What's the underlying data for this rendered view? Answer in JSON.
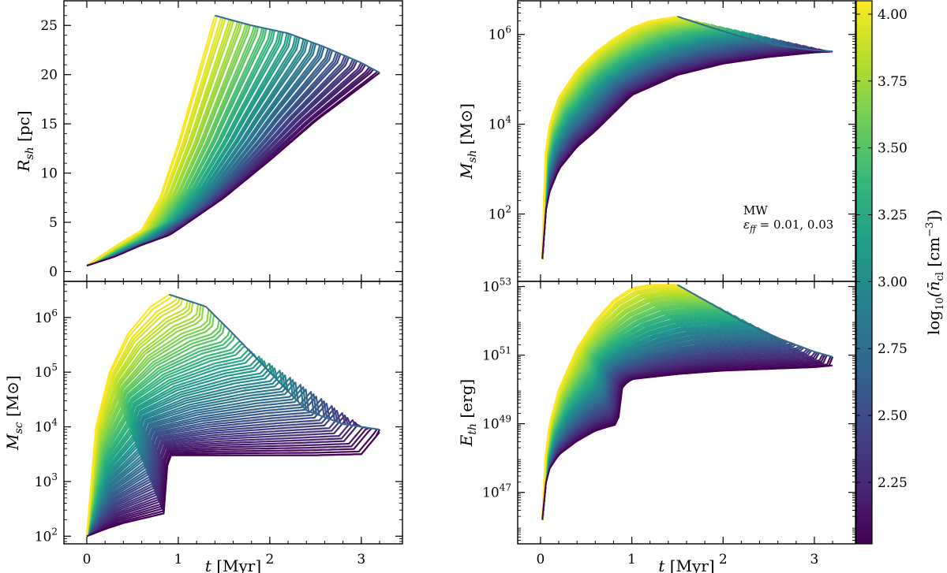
{
  "chart_data": [
    {
      "name": "shell-radius",
      "type": "line",
      "ylabel_main": "R",
      "ylabel_sub": "sh",
      "ylabel_unit": "[pc]",
      "xlabel_main": "",
      "xlabel_unit": "",
      "xlim": [
        -0.25,
        3.45
      ],
      "ylim": [
        -1,
        27.5
      ],
      "yscale": "linear",
      "xticks": [
        0,
        1,
        2,
        3
      ],
      "yticks": [
        0,
        5,
        10,
        15,
        20,
        25
      ],
      "ytick_labels": [
        "0",
        "5",
        "10",
        "15",
        "20",
        "25"
      ],
      "show_xtick_labels": false,
      "min_curve": {
        "x": [
          0,
          0.3,
          0.6,
          0.9,
          1.0,
          1.5,
          2.0,
          2.5,
          3.0,
          3.2
        ],
        "y": [
          0.6,
          1.5,
          2.7,
          3.7,
          4.3,
          7.5,
          11.3,
          15.3,
          18.8,
          20.2
        ]
      },
      "max_curve": {
        "x": [
          0,
          0.3,
          0.6,
          0.8,
          1.0,
          1.2,
          1.4
        ],
        "y": [
          0.6,
          2.5,
          4.2,
          7.5,
          13.0,
          19.5,
          26.0
        ]
      },
      "end_curve": {
        "x": [
          1.4,
          1.8,
          2.2,
          2.6,
          3.0,
          3.2
        ],
        "y": [
          26.0,
          25.0,
          24.2,
          22.8,
          21.2,
          20.2
        ]
      }
    },
    {
      "name": "cluster-mass",
      "type": "line",
      "ylabel_main": "M",
      "ylabel_sub": "sc",
      "ylabel_unit": "[M⊙]",
      "xlabel_main": "t",
      "xlabel_unit": "[Myr]",
      "xlim": [
        -0.25,
        3.45
      ],
      "ylim": [
        1.86,
        6.66
      ],
      "yscale": "log10",
      "xticks": [
        0,
        1,
        2,
        3
      ],
      "xtick_labels": [
        "0",
        "1",
        "2",
        "3"
      ],
      "yticks": [
        2,
        3,
        4,
        5,
        6
      ],
      "show_xtick_labels": true,
      "min_curve": {
        "x": [
          0,
          0.2,
          0.4,
          0.6,
          0.85,
          0.87,
          0.9,
          1.5,
          2.0,
          2.5,
          3.0,
          3.2
        ],
        "y": [
          2.0,
          2.13,
          2.24,
          2.32,
          2.42,
          3.2,
          3.48,
          3.48,
          3.48,
          3.48,
          3.5,
          3.9
        ]
      },
      "max_curve": {
        "x": [
          0,
          0.1,
          0.25,
          0.45,
          0.7,
          0.9
        ],
        "y": [
          2.0,
          4.0,
          5.0,
          5.7,
          6.2,
          6.42
        ]
      },
      "end_curve": {
        "x": [
          0.9,
          1.3,
          1.6,
          2.0,
          2.4,
          2.8,
          3.2
        ],
        "y": [
          6.42,
          6.2,
          5.7,
          5.0,
          4.3,
          4.05,
          3.95
        ]
      }
    },
    {
      "name": "shell-mass",
      "type": "line",
      "ylabel_main": "M",
      "ylabel_sub": "sh",
      "ylabel_unit": "[M⊙]",
      "xlabel_main": "",
      "xlabel_unit": "",
      "xlim": [
        -0.25,
        3.45
      ],
      "ylim": [
        0.5,
        6.75
      ],
      "yscale": "log10",
      "xticks": [
        0,
        1,
        2,
        3
      ],
      "yticks": [
        2,
        4,
        6
      ],
      "show_xtick_labels": false,
      "annotation_line1": "MW",
      "annotation_line2": "ε",
      "annotation_sub": "ff",
      "annotation_value": " = 0.01, 0.03",
      "min_curve": {
        "x": [
          0.02,
          0.05,
          0.1,
          0.2,
          0.4,
          0.6,
          0.8,
          0.9,
          1.0,
          1.5,
          2.0,
          2.5,
          3.0,
          3.2
        ],
        "y": [
          1.0,
          2.0,
          2.5,
          3.0,
          3.5,
          3.85,
          4.25,
          4.45,
          4.65,
          5.1,
          5.35,
          5.5,
          5.6,
          5.62
        ]
      },
      "max_curve": {
        "x": [
          0.02,
          0.05,
          0.1,
          0.2,
          0.4,
          0.6,
          0.8,
          1.0,
          1.2,
          1.5
        ],
        "y": [
          1.0,
          3.3,
          4.0,
          4.6,
          5.2,
          5.6,
          5.9,
          6.15,
          6.3,
          6.4
        ]
      },
      "end_curve": {
        "x": [
          1.5,
          1.8,
          2.2,
          2.6,
          3.0,
          3.2
        ],
        "y": [
          6.4,
          6.2,
          5.95,
          5.75,
          5.65,
          5.62
        ]
      }
    },
    {
      "name": "thermal-energy",
      "type": "line",
      "ylabel_main": "E",
      "ylabel_sub": "th",
      "ylabel_unit": "[erg]",
      "xlabel_main": "t",
      "xlabel_unit": "[Myr]",
      "xlim": [
        -0.25,
        3.45
      ],
      "ylim": [
        45.5,
        53.15
      ],
      "yscale": "log10",
      "xticks": [
        0,
        1,
        2,
        3
      ],
      "xtick_labels": [
        "0",
        "1",
        "2",
        "3"
      ],
      "yticks": [
        47,
        49,
        51,
        53
      ],
      "show_xtick_labels": true,
      "min_curve": {
        "x": [
          0.02,
          0.05,
          0.1,
          0.2,
          0.4,
          0.6,
          0.85,
          0.87,
          0.9,
          1.0,
          1.5,
          2.0,
          2.5,
          3.0,
          3.2
        ],
        "y": [
          46.2,
          47.2,
          47.7,
          48.1,
          48.5,
          48.8,
          49.0,
          49.8,
          50.1,
          50.3,
          50.45,
          50.55,
          50.6,
          50.65,
          50.7
        ]
      },
      "max_curve": {
        "x": [
          0.02,
          0.05,
          0.1,
          0.2,
          0.4,
          0.6,
          0.8,
          1.0,
          1.2,
          1.5
        ],
        "y": [
          46.2,
          48.0,
          49.0,
          50.0,
          51.2,
          52.0,
          52.6,
          52.95,
          53.05,
          53.05
        ]
      },
      "end_curve": {
        "x": [
          1.5,
          1.8,
          2.2,
          2.6,
          3.0,
          3.2
        ],
        "y": [
          53.05,
          52.6,
          52.0,
          51.5,
          51.1,
          50.95
        ]
      }
    }
  ],
  "colorbar": {
    "label_prefix": "log",
    "label_sub": "10",
    "label_symbol": "(n̄",
    "label_symbol_sub": "cl",
    "label_unit": " [cm",
    "label_unit_sup": "−3",
    "label_close": "])",
    "vmin": 2.02,
    "vmax": 4.05,
    "ticks": [
      2.25,
      2.5,
      2.75,
      3.0,
      3.25,
      3.5,
      3.75,
      4.0
    ],
    "tick_labels": [
      "2.25",
      "2.50",
      "2.75",
      "3.00",
      "3.25",
      "3.50",
      "3.75",
      "4.00"
    ],
    "colormap": "viridis",
    "colors": [
      "#440154",
      "#482878",
      "#3e4989",
      "#31688e",
      "#26828e",
      "#1f9e89",
      "#35b779",
      "#6ece58",
      "#b5de2b",
      "#fde725"
    ]
  }
}
